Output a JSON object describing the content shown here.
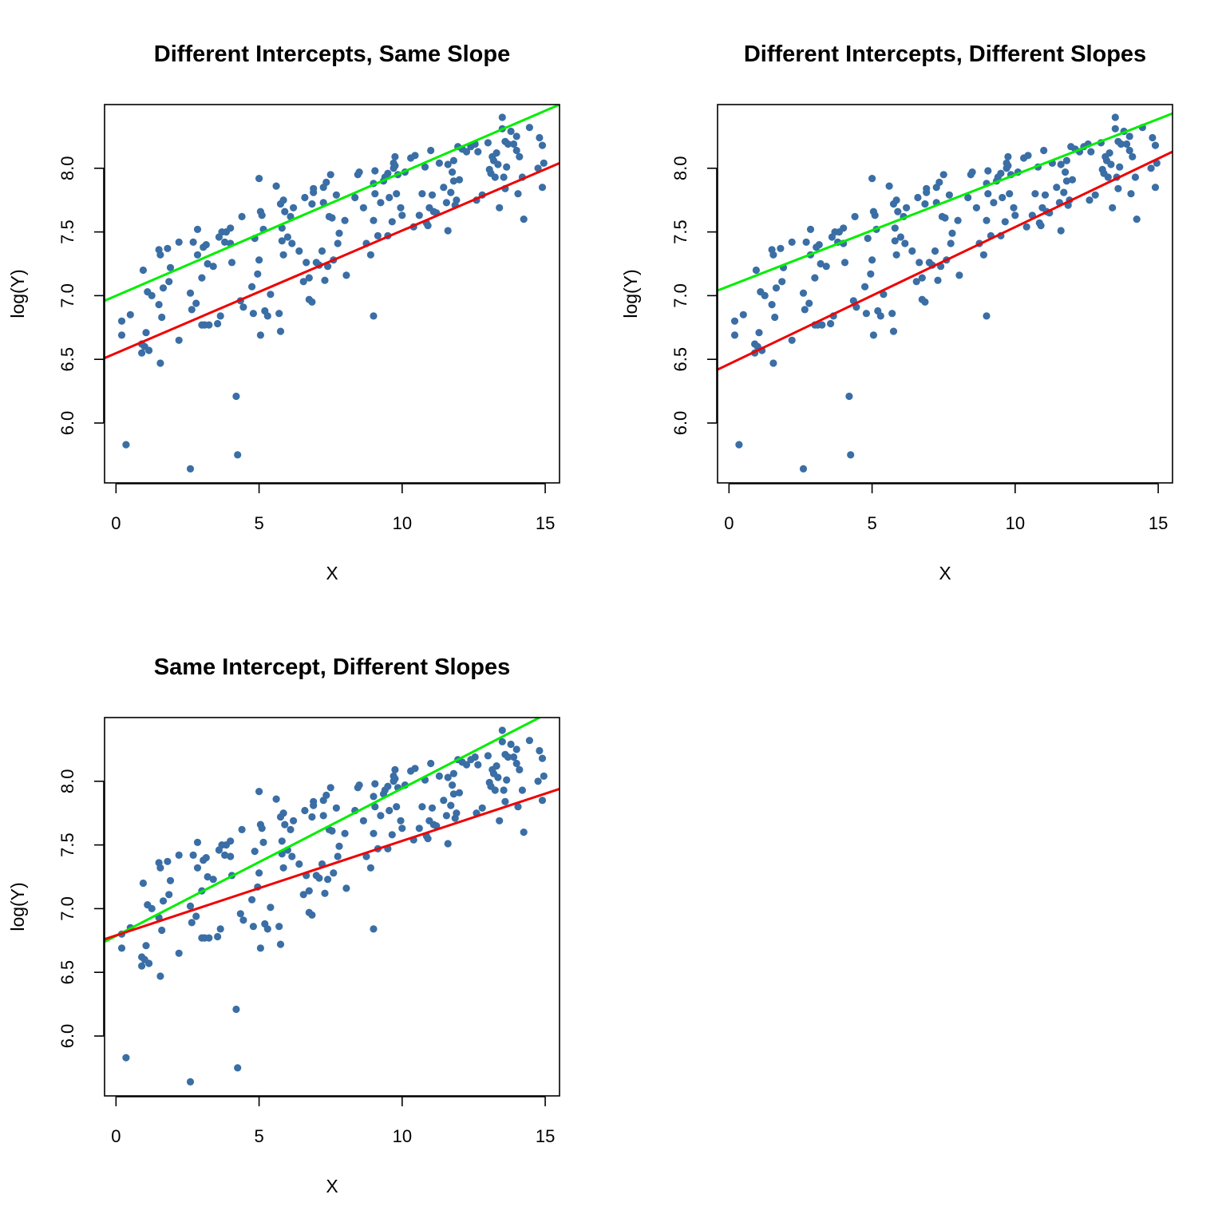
{
  "colors": {
    "points": "#3a6ea5",
    "green_line": "#00ee00",
    "red_line": "#ee0000",
    "axis": "#000000"
  },
  "chart_data": [
    {
      "type": "scatter",
      "title": "Different Intercepts, Same Slope",
      "xlabel": "X",
      "ylabel": "log(Y)",
      "xlim": [
        -0.4,
        15.5
      ],
      "ylim": [
        5.53,
        8.5
      ],
      "xticks": [
        "0",
        "5",
        "10",
        "15"
      ],
      "yticks": [
        "6.0",
        "6.5",
        "7.0",
        "7.5",
        "8.0"
      ],
      "lines": [
        {
          "color": "green",
          "x": [
            -0.4,
            15.5
          ],
          "y": [
            6.96,
            8.5
          ]
        },
        {
          "color": "red",
          "x": [
            -0.4,
            15.5
          ],
          "y": [
            6.51,
            8.04
          ]
        }
      ]
    },
    {
      "type": "scatter",
      "title": "Different Intercepts, Different Slopes",
      "xlabel": "X",
      "ylabel": "log(Y)",
      "xlim": [
        -0.4,
        15.5
      ],
      "ylim": [
        5.53,
        8.5
      ],
      "xticks": [
        "0",
        "5",
        "10",
        "15"
      ],
      "yticks": [
        "6.0",
        "6.5",
        "7.0",
        "7.5",
        "8.0"
      ],
      "lines": [
        {
          "color": "green",
          "x": [
            -0.4,
            15.5
          ],
          "y": [
            7.04,
            8.43
          ]
        },
        {
          "color": "red",
          "x": [
            -0.4,
            15.5
          ],
          "y": [
            6.42,
            8.13
          ]
        }
      ]
    },
    {
      "type": "scatter",
      "title": "Same Intercept, Different Slopes",
      "xlabel": "X",
      "ylabel": "log(Y)",
      "xlim": [
        -0.4,
        15.5
      ],
      "ylim": [
        5.53,
        8.5
      ],
      "xticks": [
        "0",
        "5",
        "10",
        "15"
      ],
      "yticks": [
        "6.0",
        "6.5",
        "7.0",
        "7.5",
        "8.0"
      ],
      "lines": [
        {
          "color": "green",
          "x": [
            -0.4,
            14.8
          ],
          "y": [
            6.74,
            8.5
          ]
        },
        {
          "color": "red",
          "x": [
            -0.4,
            15.5
          ],
          "y": [
            6.76,
            7.94
          ]
        }
      ]
    }
  ],
  "points": [
    [
      0.2,
      6.8
    ],
    [
      0.2,
      6.69
    ],
    [
      0.35,
      5.83
    ],
    [
      0.5,
      6.85
    ],
    [
      0.9,
      6.62
    ],
    [
      0.9,
      6.55
    ],
    [
      0.95,
      7.2
    ],
    [
      1.0,
      6.6
    ],
    [
      1.05,
      6.71
    ],
    [
      1.1,
      7.03
    ],
    [
      1.15,
      6.57
    ],
    [
      1.25,
      7.0
    ],
    [
      1.5,
      6.93
    ],
    [
      1.5,
      7.36
    ],
    [
      1.55,
      6.47
    ],
    [
      1.55,
      7.32
    ],
    [
      1.6,
      6.83
    ],
    [
      1.65,
      7.06
    ],
    [
      1.8,
      7.37
    ],
    [
      1.85,
      7.11
    ],
    [
      1.9,
      7.22
    ],
    [
      2.2,
      7.42
    ],
    [
      2.2,
      6.65
    ],
    [
      2.6,
      5.64
    ],
    [
      2.6,
      7.02
    ],
    [
      2.65,
      6.89
    ],
    [
      2.7,
      7.42
    ],
    [
      2.8,
      6.94
    ],
    [
      2.85,
      7.32
    ],
    [
      2.85,
      7.52
    ],
    [
      3.0,
      6.77
    ],
    [
      3.0,
      7.14
    ],
    [
      3.05,
      7.38
    ],
    [
      3.1,
      6.77
    ],
    [
      3.15,
      7.4
    ],
    [
      3.2,
      7.25
    ],
    [
      3.25,
      6.77
    ],
    [
      3.4,
      7.23
    ],
    [
      3.55,
      6.78
    ],
    [
      3.6,
      7.46
    ],
    [
      3.65,
      6.84
    ],
    [
      3.7,
      7.5
    ],
    [
      3.8,
      7.42
    ],
    [
      3.85,
      7.5
    ],
    [
      4.0,
      7.41
    ],
    [
      4.0,
      7.53
    ],
    [
      4.05,
      7.26
    ],
    [
      4.2,
      6.21
    ],
    [
      4.25,
      5.75
    ],
    [
      4.35,
      6.96
    ],
    [
      4.4,
      7.62
    ],
    [
      4.45,
      6.91
    ],
    [
      4.75,
      7.07
    ],
    [
      4.8,
      6.86
    ],
    [
      4.85,
      7.45
    ],
    [
      4.95,
      7.17
    ],
    [
      5.0,
      7.28
    ],
    [
      5.0,
      7.92
    ],
    [
      5.05,
      7.66
    ],
    [
      5.05,
      6.69
    ],
    [
      5.1,
      7.63
    ],
    [
      5.15,
      7.52
    ],
    [
      5.2,
      6.88
    ],
    [
      5.3,
      6.84
    ],
    [
      5.4,
      7.01
    ],
    [
      5.6,
      7.86
    ],
    [
      5.7,
      6.86
    ],
    [
      5.75,
      6.72
    ],
    [
      5.75,
      7.72
    ],
    [
      5.8,
      7.43
    ],
    [
      5.8,
      7.53
    ],
    [
      5.85,
      7.32
    ],
    [
      5.85,
      7.75
    ],
    [
      5.9,
      7.66
    ],
    [
      6.0,
      7.46
    ],
    [
      6.1,
      7.62
    ],
    [
      6.15,
      7.41
    ],
    [
      6.2,
      7.69
    ],
    [
      6.4,
      7.35
    ],
    [
      6.55,
      7.11
    ],
    [
      6.6,
      7.77
    ],
    [
      6.65,
      7.26
    ],
    [
      6.75,
      7.14
    ],
    [
      6.75,
      6.97
    ],
    [
      6.85,
      6.95
    ],
    [
      6.85,
      7.72
    ],
    [
      6.9,
      7.84
    ],
    [
      6.9,
      7.81
    ],
    [
      7.0,
      7.26
    ],
    [
      7.1,
      7.24
    ],
    [
      7.2,
      7.35
    ],
    [
      7.25,
      7.85
    ],
    [
      7.25,
      7.73
    ],
    [
      7.3,
      7.12
    ],
    [
      7.35,
      7.89
    ],
    [
      7.4,
      7.23
    ],
    [
      7.45,
      7.62
    ],
    [
      7.5,
      7.95
    ],
    [
      7.55,
      7.61
    ],
    [
      7.6,
      7.28
    ],
    [
      7.7,
      7.79
    ],
    [
      7.75,
      7.41
    ],
    [
      7.8,
      7.49
    ],
    [
      8.0,
      7.59
    ],
    [
      8.05,
      7.16
    ],
    [
      8.35,
      7.77
    ],
    [
      8.45,
      7.95
    ],
    [
      8.5,
      7.97
    ],
    [
      8.65,
      7.69
    ],
    [
      8.75,
      7.41
    ],
    [
      8.9,
      7.32
    ],
    [
      9.0,
      6.84
    ],
    [
      9.0,
      7.88
    ],
    [
      9.0,
      7.59
    ],
    [
      9.05,
      7.8
    ],
    [
      9.05,
      7.98
    ],
    [
      9.15,
      7.47
    ],
    [
      9.25,
      7.73
    ],
    [
      9.35,
      7.9
    ],
    [
      9.4,
      7.93
    ],
    [
      9.5,
      7.47
    ],
    [
      9.5,
      7.96
    ],
    [
      9.55,
      7.77
    ],
    [
      9.65,
      7.58
    ],
    [
      9.7,
      8.0
    ],
    [
      9.7,
      8.04
    ],
    [
      9.75,
      8.09
    ],
    [
      9.75,
      8.02
    ],
    [
      9.8,
      7.8
    ],
    [
      9.85,
      7.95
    ],
    [
      9.95,
      7.69
    ],
    [
      10.0,
      7.63
    ],
    [
      10.1,
      7.97
    ],
    [
      10.3,
      8.08
    ],
    [
      10.4,
      7.54
    ],
    [
      10.45,
      8.1
    ],
    [
      10.6,
      7.63
    ],
    [
      10.7,
      7.8
    ],
    [
      10.8,
      8.01
    ],
    [
      10.85,
      7.57
    ],
    [
      10.9,
      7.55
    ],
    [
      10.95,
      7.69
    ],
    [
      11.0,
      8.14
    ],
    [
      11.05,
      7.79
    ],
    [
      11.1,
      7.66
    ],
    [
      11.2,
      7.65
    ],
    [
      11.3,
      8.04
    ],
    [
      11.45,
      7.85
    ],
    [
      11.55,
      7.73
    ],
    [
      11.6,
      7.51
    ],
    [
      11.6,
      8.03
    ],
    [
      11.7,
      7.81
    ],
    [
      11.75,
      7.97
    ],
    [
      11.8,
      7.9
    ],
    [
      11.8,
      8.06
    ],
    [
      11.85,
      7.71
    ],
    [
      11.9,
      7.75
    ],
    [
      11.95,
      8.17
    ],
    [
      12.0,
      7.91
    ],
    [
      12.1,
      8.15
    ],
    [
      12.25,
      8.13
    ],
    [
      12.4,
      8.17
    ],
    [
      12.55,
      8.19
    ],
    [
      12.6,
      7.75
    ],
    [
      12.65,
      8.13
    ],
    [
      12.8,
      7.79
    ],
    [
      13.0,
      8.2
    ],
    [
      13.05,
      7.99
    ],
    [
      13.1,
      7.96
    ],
    [
      13.15,
      8.09
    ],
    [
      13.2,
      8.06
    ],
    [
      13.25,
      7.93
    ],
    [
      13.3,
      8.12
    ],
    [
      13.35,
      8.03
    ],
    [
      13.4,
      7.69
    ],
    [
      13.5,
      8.31
    ],
    [
      13.5,
      8.4
    ],
    [
      13.55,
      7.93
    ],
    [
      13.6,
      7.84
    ],
    [
      13.6,
      8.21
    ],
    [
      13.65,
      8.01
    ],
    [
      13.7,
      8.19
    ],
    [
      13.8,
      8.29
    ],
    [
      13.9,
      8.19
    ],
    [
      14.0,
      8.14
    ],
    [
      14.0,
      8.25
    ],
    [
      14.05,
      7.8
    ],
    [
      14.1,
      8.09
    ],
    [
      14.2,
      7.93
    ],
    [
      14.25,
      7.6
    ],
    [
      14.45,
      8.32
    ],
    [
      14.75,
      8.0
    ],
    [
      14.8,
      8.24
    ],
    [
      14.9,
      7.85
    ],
    [
      14.95,
      8.04
    ],
    [
      14.9,
      8.18
    ]
  ]
}
